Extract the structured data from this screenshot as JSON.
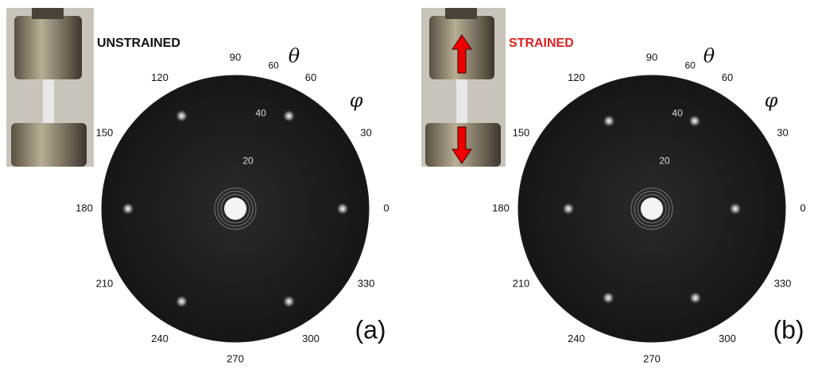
{
  "panels": [
    {
      "label": "UNSTRAINED",
      "tag": "(a)",
      "theta_symbol": "θ",
      "phi_symbol": "φ",
      "angle_labels": [
        0,
        30,
        60,
        90,
        120,
        150,
        180,
        210,
        240,
        270,
        300,
        330
      ],
      "radius_labels": [
        20,
        40,
        60
      ]
    },
    {
      "label": "STRAINED",
      "tag": "(b)",
      "theta_symbol": "θ",
      "phi_symbol": "φ",
      "angle_labels": [
        0,
        30,
        60,
        90,
        120,
        150,
        180,
        210,
        240,
        270,
        300,
        330
      ],
      "radius_labels": [
        20,
        40,
        60
      ]
    }
  ]
}
